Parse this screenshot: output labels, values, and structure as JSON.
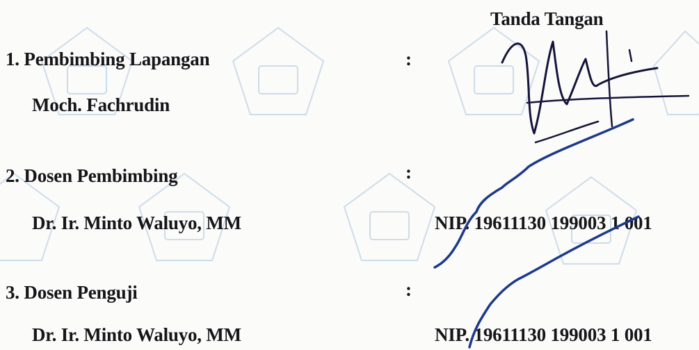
{
  "header": {
    "signature_heading": "Tanda Tangan"
  },
  "rows": [
    {
      "role": "1. Pembimbing Lapangan",
      "name": "Moch. Fachrudin",
      "colon": ":",
      "nip": ""
    },
    {
      "role": "2. Dosen Pembimbing",
      "name": "Dr. Ir. Minto Waluyo, MM",
      "colon": ":",
      "nip": "NIP. 19611130 199003 1 001"
    },
    {
      "role": "3. Dosen Penguji",
      "name": "Dr. Ir. Minto Waluyo, MM",
      "colon": ":",
      "nip": "NIP. 19611130 199003 1 001"
    }
  ],
  "colors": {
    "text": "#15151a",
    "signature_ink": "#14143a",
    "signature_blue": "#1d3a8a",
    "watermark": "#a9c3de"
  }
}
